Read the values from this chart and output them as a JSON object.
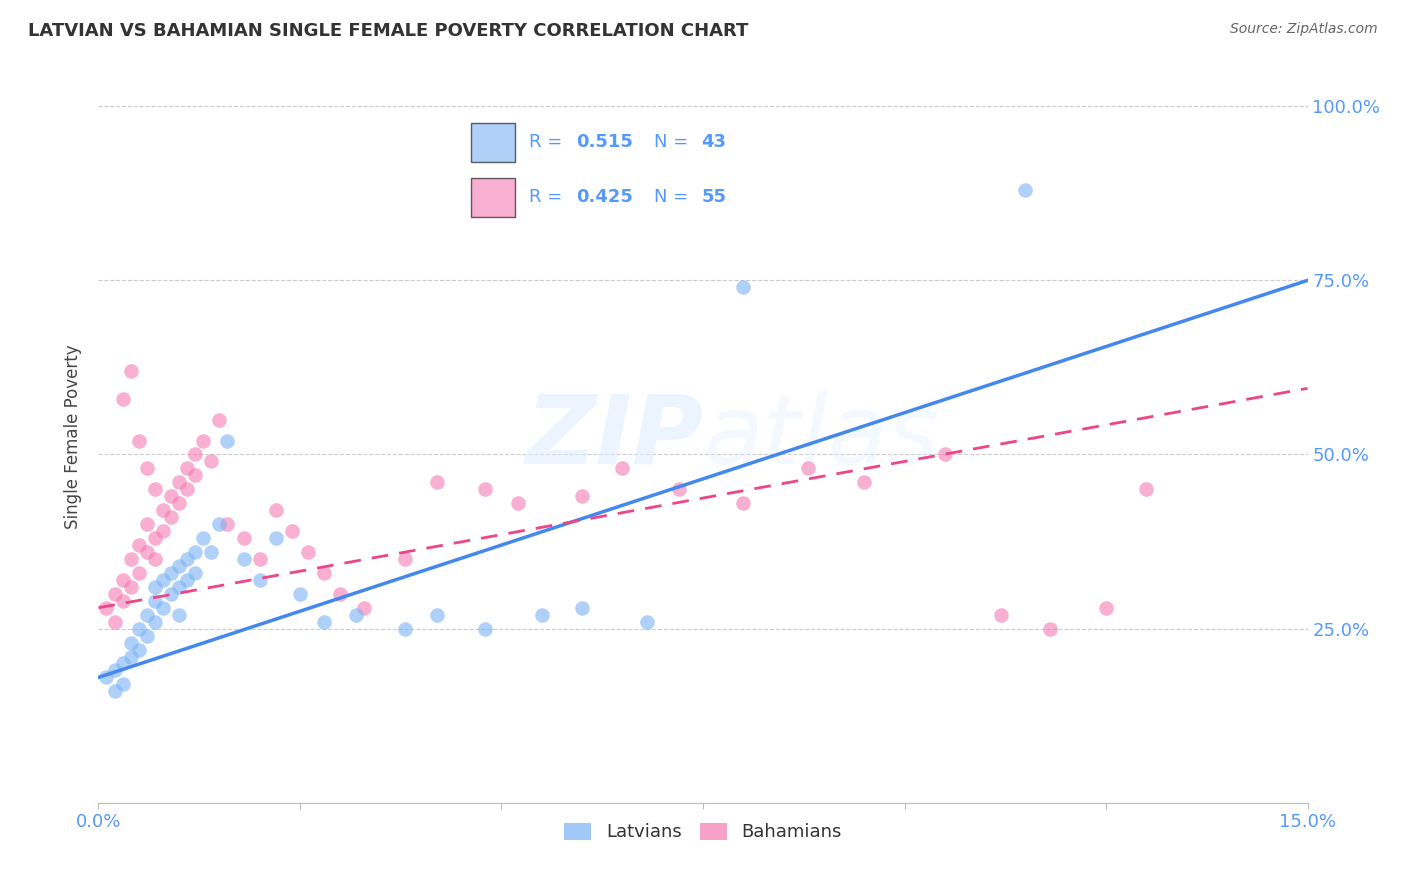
{
  "title": "LATVIAN VS BAHAMIAN SINGLE FEMALE POVERTY CORRELATION CHART",
  "source": "Source: ZipAtlas.com",
  "tick_color": "#5599ff",
  "ylabel": "Single Female Poverty",
  "xlim": [
    0.0,
    0.15
  ],
  "ylim": [
    0.0,
    1.05
  ],
  "latvian_color": "#7ab3f5",
  "bahamian_color": "#f57ab3",
  "latvian_line_color": "#4488ee",
  "bahamian_line_color": "#ee4488",
  "latvian_R": 0.515,
  "latvian_N": 43,
  "bahamian_R": 0.425,
  "bahamian_N": 55,
  "watermark": "ZIPatlas",
  "legend_text_color": "#5599ff",
  "latvians_x": [
    0.001,
    0.002,
    0.002,
    0.003,
    0.003,
    0.004,
    0.004,
    0.005,
    0.005,
    0.006,
    0.006,
    0.007,
    0.007,
    0.007,
    0.008,
    0.008,
    0.009,
    0.009,
    0.01,
    0.01,
    0.01,
    0.011,
    0.011,
    0.012,
    0.012,
    0.013,
    0.014,
    0.015,
    0.016,
    0.018,
    0.02,
    0.022,
    0.025,
    0.028,
    0.032,
    0.038,
    0.042,
    0.048,
    0.055,
    0.06,
    0.068,
    0.08,
    0.115
  ],
  "latvians_y": [
    0.18,
    0.16,
    0.19,
    0.2,
    0.17,
    0.21,
    0.23,
    0.22,
    0.25,
    0.27,
    0.24,
    0.29,
    0.31,
    0.26,
    0.32,
    0.28,
    0.33,
    0.3,
    0.34,
    0.31,
    0.27,
    0.35,
    0.32,
    0.36,
    0.33,
    0.38,
    0.36,
    0.4,
    0.52,
    0.35,
    0.32,
    0.38,
    0.3,
    0.26,
    0.27,
    0.25,
    0.27,
    0.25,
    0.27,
    0.28,
    0.26,
    0.74,
    0.88
  ],
  "bahamians_x": [
    0.001,
    0.002,
    0.002,
    0.003,
    0.003,
    0.004,
    0.004,
    0.005,
    0.005,
    0.006,
    0.006,
    0.007,
    0.007,
    0.008,
    0.008,
    0.009,
    0.009,
    0.01,
    0.01,
    0.011,
    0.011,
    0.012,
    0.012,
    0.013,
    0.014,
    0.015,
    0.016,
    0.018,
    0.02,
    0.022,
    0.024,
    0.026,
    0.028,
    0.03,
    0.033,
    0.038,
    0.042,
    0.048,
    0.052,
    0.06,
    0.065,
    0.072,
    0.08,
    0.088,
    0.095,
    0.105,
    0.112,
    0.118,
    0.125,
    0.13,
    0.003,
    0.004,
    0.005,
    0.006,
    0.007
  ],
  "bahamians_y": [
    0.28,
    0.26,
    0.3,
    0.29,
    0.32,
    0.31,
    0.35,
    0.33,
    0.37,
    0.36,
    0.4,
    0.38,
    0.35,
    0.42,
    0.39,
    0.44,
    0.41,
    0.46,
    0.43,
    0.48,
    0.45,
    0.5,
    0.47,
    0.52,
    0.49,
    0.55,
    0.4,
    0.38,
    0.35,
    0.42,
    0.39,
    0.36,
    0.33,
    0.3,
    0.28,
    0.35,
    0.46,
    0.45,
    0.43,
    0.44,
    0.48,
    0.45,
    0.43,
    0.48,
    0.46,
    0.5,
    0.27,
    0.25,
    0.28,
    0.45,
    0.58,
    0.62,
    0.52,
    0.48,
    0.45
  ]
}
